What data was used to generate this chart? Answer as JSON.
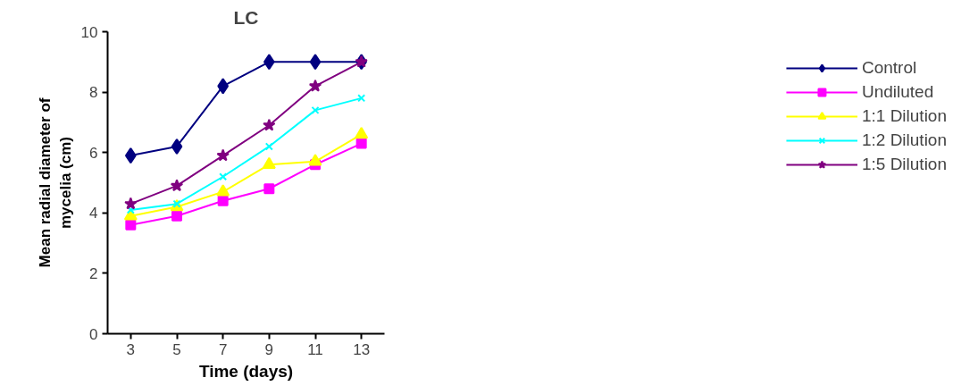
{
  "chart_data": {
    "type": "line",
    "title": "LC",
    "xlabel": "Time (days)",
    "ylabel": "Mean radial diameter of\nmycelia (cm)",
    "categories": [
      "3",
      "5",
      "7",
      "9",
      "11",
      "13"
    ],
    "series": [
      {
        "name": "Control",
        "color": "#000080",
        "marker": "diamond",
        "values": [
          5.9,
          6.2,
          8.2,
          9.0,
          9.0,
          9.0
        ]
      },
      {
        "name": "Undiluted",
        "color": "#ff00ff",
        "marker": "square",
        "values": [
          3.6,
          3.9,
          4.4,
          4.8,
          5.6,
          6.3
        ]
      },
      {
        "name": "1:1 Dilution",
        "color": "#ffff00",
        "marker": "triangle",
        "values": [
          3.9,
          4.2,
          4.7,
          5.6,
          5.7,
          6.6
        ]
      },
      {
        "name": "1:2 Dilution",
        "color": "#00ffff",
        "marker": "cross",
        "values": [
          4.1,
          4.3,
          5.2,
          6.2,
          7.4,
          7.8
        ]
      },
      {
        "name": "1:5 Dilution",
        "color": "#800080",
        "marker": "star",
        "values": [
          4.3,
          4.9,
          5.9,
          6.9,
          8.2,
          9.0
        ]
      }
    ],
    "ylim": [
      0,
      10
    ],
    "yticks": [
      0,
      2,
      4,
      6,
      8,
      10
    ],
    "grid": false,
    "legend": "right"
  }
}
